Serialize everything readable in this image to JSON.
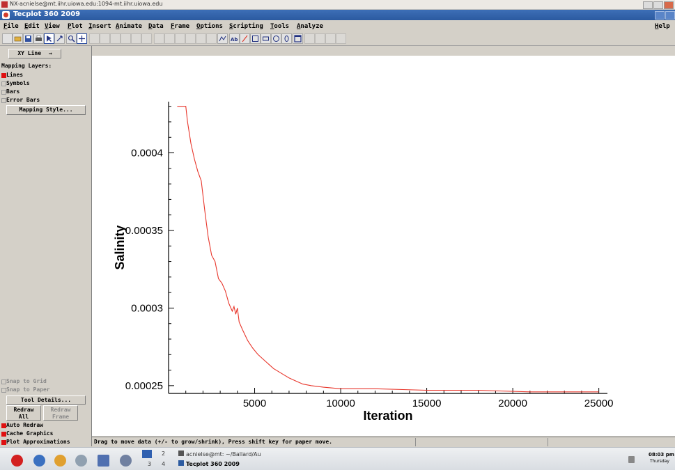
{
  "outer_window": {
    "title": "NX-acnielse@mt.iihr.uiowa.edu:1094-mt.iihr.uiowa.edu"
  },
  "app": {
    "title": "Tecplot 360 2009"
  },
  "menu": [
    {
      "label": "File"
    },
    {
      "label": "Edit"
    },
    {
      "label": "View"
    },
    {
      "label": "Plot"
    },
    {
      "label": "Insert"
    },
    {
      "label": "Animate"
    },
    {
      "label": "Data"
    },
    {
      "label": "Frame"
    },
    {
      "label": "Options"
    },
    {
      "label": "Scripting"
    },
    {
      "label": "Tools"
    },
    {
      "label": "Analyze"
    },
    {
      "label": "Help"
    }
  ],
  "sidebar": {
    "plot_type": "XY Line",
    "mapping_layers_label": "Mapping Layers:",
    "layers": [
      {
        "label": "Lines",
        "checked": true
      },
      {
        "label": "Symbols",
        "checked": false
      },
      {
        "label": "Bars",
        "checked": false
      },
      {
        "label": "Error Bars",
        "checked": false
      }
    ],
    "mapping_style_button": "Mapping Style...",
    "snap_grid": "Snap to Grid",
    "snap_paper": "Snap to Paper",
    "tool_details_button": "Tool Details...",
    "redraw_all_button": "Redraw All",
    "redraw_frame_button": "Redraw Frame",
    "options": [
      {
        "label": "Auto Redraw",
        "checked": true
      },
      {
        "label": "Cache Graphics",
        "checked": true
      },
      {
        "label": "Plot Approximations",
        "checked": true
      }
    ]
  },
  "chart_data": {
    "type": "line",
    "xlabel": "Iteration",
    "ylabel": "Salinity",
    "xlim": [
      0,
      25500
    ],
    "ylim": [
      0.000245,
      0.000433
    ],
    "x_ticks": [
      5000,
      10000,
      15000,
      20000,
      25000
    ],
    "x_tick_labels": [
      "5000",
      "10000",
      "15000",
      "20000",
      "25000"
    ],
    "y_ticks": [
      0.00025,
      0.0003,
      0.00035,
      0.0004
    ],
    "y_tick_labels": [
      "0.00025",
      "0.0003",
      "0.00035",
      "0.0004"
    ],
    "grid": false,
    "series": [
      {
        "color": "#e8362b",
        "x": [
          500,
          800,
          1000,
          1100,
          1300,
          1500,
          1700,
          1900,
          2100,
          2300,
          2500,
          2700,
          2900,
          3100,
          3300,
          3500,
          3700,
          3800,
          3900,
          4000,
          4100,
          4300,
          4600,
          4900,
          5200,
          5500,
          5800,
          6100,
          6400,
          6700,
          7000,
          7400,
          7800,
          8300,
          9000,
          10000,
          12000,
          15000,
          18000,
          21000,
          25000
        ],
        "y": [
          0.00043,
          0.00043,
          0.00043,
          0.00042,
          0.000406,
          0.000396,
          0.000388,
          0.000382,
          0.000363,
          0.000346,
          0.000334,
          0.00033,
          0.000319,
          0.000316,
          0.000311,
          0.000303,
          0.000298,
          0.000301,
          0.000296,
          0.0003,
          0.000291,
          0.000286,
          0.000279,
          0.000274,
          0.00027,
          0.000267,
          0.000264,
          0.000261,
          0.000259,
          0.000257,
          0.000255,
          0.000253,
          0.000251,
          0.00025,
          0.000249,
          0.000248,
          0.000248,
          0.000247,
          0.000247,
          0.000246,
          0.000246
        ]
      }
    ]
  },
  "status": {
    "message": "Drag to move data (+/- to grow/shrink),  Press shift key for paper move."
  },
  "taskbar": {
    "workspaces": [
      "1",
      "2",
      "3",
      "4"
    ],
    "tasks": [
      {
        "label": "acnielse@mt: ~/Ballard/Au"
      },
      {
        "label": "Tecplot 360 2009"
      }
    ],
    "clock_time": "08:03 pm",
    "clock_day": "Thursday"
  }
}
